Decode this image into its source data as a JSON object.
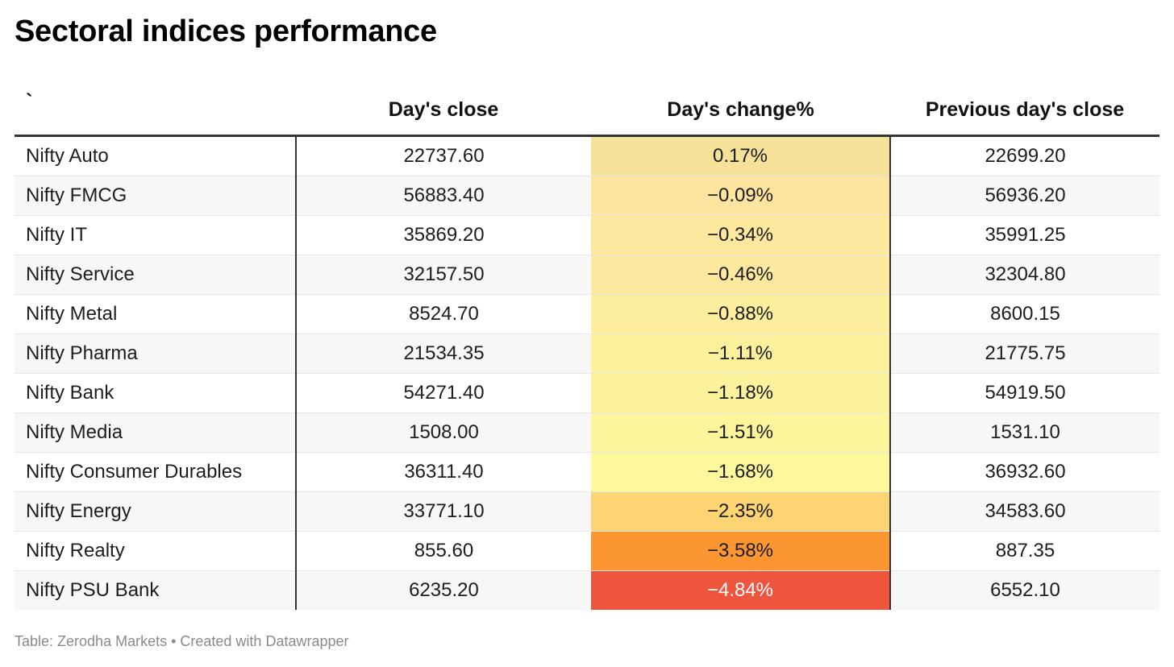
{
  "title": "Sectoral indices performance",
  "footer": "Table: Zerodha Markets • Created with Datawrapper",
  "chart_data": {
    "type": "table",
    "columns": [
      "`",
      "Day's close",
      "Day's change%",
      "Previous day's close"
    ],
    "rows": [
      {
        "name": "Nifty Auto",
        "close": "22737.60",
        "change": "0.17%",
        "prev": "22699.20",
        "color": "#f5e197",
        "text_color": "#1d1d1d"
      },
      {
        "name": "Nifty FMCG",
        "close": "56883.40",
        "change": "−0.09%",
        "prev": "56936.20",
        "color": "#fde59f",
        "text_color": "#1d1d1d"
      },
      {
        "name": "Nifty IT",
        "close": "35869.20",
        "change": "−0.34%",
        "prev": "35991.25",
        "color": "#fde89e",
        "text_color": "#1d1d1d"
      },
      {
        "name": "Nifty Service",
        "close": "32157.50",
        "change": "−0.46%",
        "prev": "32304.80",
        "color": "#fde99e",
        "text_color": "#1d1d1d"
      },
      {
        "name": "Nifty Metal",
        "close": "8524.70",
        "change": "−0.88%",
        "prev": "8600.15",
        "color": "#fdee9d",
        "text_color": "#1d1d1d"
      },
      {
        "name": "Nifty Pharma",
        "close": "21534.35",
        "change": "−1.11%",
        "prev": "21775.75",
        "color": "#fdf09c",
        "text_color": "#1d1d1d"
      },
      {
        "name": "Nifty Bank",
        "close": "54271.40",
        "change": "−1.18%",
        "prev": "54919.50",
        "color": "#fdf29c",
        "text_color": "#1d1d1d"
      },
      {
        "name": "Nifty Media",
        "close": "1508.00",
        "change": "−1.51%",
        "prev": "1531.10",
        "color": "#fdf59c",
        "text_color": "#1d1d1d"
      },
      {
        "name": "Nifty Consumer Durables",
        "close": "36311.40",
        "change": "−1.68%",
        "prev": "36932.60",
        "color": "#fef89d",
        "text_color": "#1d1d1d"
      },
      {
        "name": "Nifty Energy",
        "close": "33771.10",
        "change": "−2.35%",
        "prev": "34583.60",
        "color": "#fdd474",
        "text_color": "#1d1d1d"
      },
      {
        "name": "Nifty Realty",
        "close": "855.60",
        "change": "−3.58%",
        "prev": "887.35",
        "color": "#fc9630",
        "text_color": "#1d1d1d"
      },
      {
        "name": "Nifty PSU Bank",
        "close": "6235.20",
        "change": "−4.84%",
        "prev": "6552.10",
        "color": "#ef543c",
        "text_color": "#ffffff"
      }
    ]
  }
}
